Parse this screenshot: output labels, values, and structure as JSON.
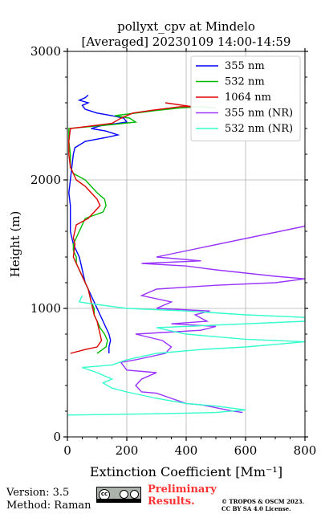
{
  "chart_data": {
    "type": "line",
    "title": "pollyxt_cpv at Mindelo",
    "subtitle": "[Averaged] 20230109 14:00-14:59",
    "xlabel": "Extinction Coefficient [Mm⁻¹]",
    "ylabel": "Height (m)",
    "xlim": [
      0,
      800
    ],
    "ylim": [
      0,
      3000
    ],
    "xticks": [
      "0",
      "200",
      "400",
      "600",
      "800"
    ],
    "yticks": [
      "0",
      "1000",
      "2000",
      "3000"
    ],
    "grid": true,
    "legend_position": "top-right",
    "series": [
      {
        "name": "355 nm",
        "color": "#0000ff",
        "points": [
          [
            140,
            650
          ],
          [
            140,
            700
          ],
          [
            145,
            750
          ],
          [
            140,
            800
          ],
          [
            130,
            850
          ],
          [
            120,
            900
          ],
          [
            110,
            950
          ],
          [
            100,
            1000
          ],
          [
            90,
            1050
          ],
          [
            80,
            1100
          ],
          [
            70,
            1150
          ],
          [
            60,
            1200
          ],
          [
            55,
            1250
          ],
          [
            50,
            1300
          ],
          [
            45,
            1350
          ],
          [
            40,
            1400
          ],
          [
            30,
            1450
          ],
          [
            20,
            1500
          ],
          [
            15,
            1550
          ],
          [
            10,
            1600
          ],
          [
            10,
            1700
          ],
          [
            10,
            1800
          ],
          [
            5,
            1900
          ],
          [
            10,
            2000
          ],
          [
            15,
            2100
          ],
          [
            20,
            2200
          ],
          [
            25,
            2250
          ],
          [
            60,
            2300
          ],
          [
            130,
            2330
          ],
          [
            170,
            2350
          ],
          [
            130,
            2380
          ],
          [
            80,
            2400
          ],
          [
            110,
            2420
          ],
          [
            200,
            2450
          ],
          [
            190,
            2480
          ],
          [
            150,
            2500
          ],
          [
            100,
            2520
          ],
          [
            60,
            2550
          ],
          [
            50,
            2580
          ],
          [
            70,
            2600
          ],
          [
            40,
            2620
          ],
          [
            60,
            2640
          ],
          [
            70,
            2660
          ]
        ]
      },
      {
        "name": "532 nm",
        "color": "#00bb00",
        "points": [
          [
            100,
            650
          ],
          [
            130,
            700
          ],
          [
            135,
            750
          ],
          [
            125,
            800
          ],
          [
            110,
            850
          ],
          [
            100,
            900
          ],
          [
            90,
            950
          ],
          [
            90,
            1000
          ],
          [
            80,
            1050
          ],
          [
            75,
            1100
          ],
          [
            70,
            1150
          ],
          [
            60,
            1200
          ],
          [
            50,
            1250
          ],
          [
            40,
            1300
          ],
          [
            30,
            1350
          ],
          [
            30,
            1400
          ],
          [
            20,
            1450
          ],
          [
            20,
            1500
          ],
          [
            40,
            1600
          ],
          [
            50,
            1650
          ],
          [
            60,
            1700
          ],
          [
            120,
            1750
          ],
          [
            130,
            1800
          ],
          [
            125,
            1850
          ],
          [
            100,
            1900
          ],
          [
            80,
            1950
          ],
          [
            60,
            2000
          ],
          [
            20,
            2050
          ],
          [
            10,
            2100
          ],
          [
            10,
            2200
          ],
          [
            5,
            2300
          ],
          [
            5,
            2400
          ],
          [
            150,
            2430
          ],
          [
            230,
            2450
          ],
          [
            210,
            2480
          ],
          [
            160,
            2500
          ],
          [
            230,
            2520
          ],
          [
            300,
            2540
          ],
          [
            380,
            2560
          ],
          [
            450,
            2570
          ],
          [
            500,
            2560
          ]
        ]
      },
      {
        "name": "1064 nm",
        "color": "#dd0000",
        "points": [
          [
            10,
            650
          ],
          [
            60,
            680
          ],
          [
            100,
            700
          ],
          [
            115,
            750
          ],
          [
            110,
            800
          ],
          [
            105,
            850
          ],
          [
            100,
            900
          ],
          [
            90,
            950
          ],
          [
            85,
            1000
          ],
          [
            80,
            1050
          ],
          [
            75,
            1100
          ],
          [
            70,
            1150
          ],
          [
            60,
            1200
          ],
          [
            50,
            1250
          ],
          [
            40,
            1300
          ],
          [
            30,
            1350
          ],
          [
            20,
            1400
          ],
          [
            25,
            1500
          ],
          [
            20,
            1550
          ],
          [
            30,
            1650
          ],
          [
            70,
            1700
          ],
          [
            90,
            1750
          ],
          [
            110,
            1800
          ],
          [
            100,
            1850
          ],
          [
            80,
            1900
          ],
          [
            60,
            1950
          ],
          [
            30,
            2000
          ],
          [
            10,
            2100
          ],
          [
            5,
            2200
          ],
          [
            5,
            2300
          ],
          [
            10,
            2400
          ],
          [
            80,
            2420
          ],
          [
            150,
            2440
          ],
          [
            180,
            2480
          ],
          [
            200,
            2500
          ],
          [
            220,
            2520
          ],
          [
            280,
            2540
          ],
          [
            380,
            2570
          ],
          [
            420,
            2570
          ],
          [
            330,
            2600
          ]
        ]
      },
      {
        "name": "355 nm (NR)",
        "color": "#9933ff",
        "points": [
          [
            590,
            190
          ],
          [
            560,
            200
          ],
          [
            450,
            250
          ],
          [
            400,
            260
          ],
          [
            350,
            300
          ],
          [
            300,
            340
          ],
          [
            250,
            350
          ],
          [
            230,
            400
          ],
          [
            250,
            450
          ],
          [
            280,
            480
          ],
          [
            300,
            500
          ],
          [
            200,
            520
          ],
          [
            180,
            580
          ],
          [
            230,
            600
          ],
          [
            330,
            650
          ],
          [
            350,
            700
          ],
          [
            320,
            750
          ],
          [
            230,
            800
          ],
          [
            450,
            830
          ],
          [
            500,
            860
          ],
          [
            350,
            880
          ],
          [
            470,
            900
          ],
          [
            430,
            950
          ],
          [
            480,
            980
          ],
          [
            300,
            1000
          ],
          [
            350,
            1050
          ],
          [
            250,
            1100
          ],
          [
            300,
            1150
          ],
          [
            500,
            1180
          ],
          [
            700,
            1200
          ],
          [
            800,
            1230
          ],
          [
            700,
            1250
          ],
          [
            500,
            1300
          ],
          [
            400,
            1330
          ],
          [
            250,
            1350
          ],
          [
            450,
            1370
          ],
          [
            300,
            1400
          ],
          [
            800,
            1640
          ],
          [
            800,
            1660
          ]
        ]
      },
      {
        "name": "532 nm (NR)",
        "color": "#33ffcc",
        "points": [
          [
            0,
            170
          ],
          [
            300,
            180
          ],
          [
            500,
            190
          ],
          [
            600,
            210
          ],
          [
            500,
            240
          ],
          [
            400,
            260
          ],
          [
            300,
            300
          ],
          [
            200,
            350
          ],
          [
            150,
            380
          ],
          [
            120,
            420
          ],
          [
            150,
            450
          ],
          [
            100,
            500
          ],
          [
            50,
            540
          ],
          [
            150,
            560
          ],
          [
            200,
            600
          ],
          [
            300,
            650
          ],
          [
            450,
            680
          ],
          [
            600,
            700
          ],
          [
            700,
            720
          ],
          [
            800,
            740
          ],
          [
            600,
            760
          ],
          [
            400,
            800
          ],
          [
            300,
            850
          ],
          [
            800,
            900
          ],
          [
            800,
            930
          ],
          [
            600,
            950
          ],
          [
            400,
            980
          ],
          [
            200,
            1000
          ],
          [
            100,
            1030
          ],
          [
            40,
            1050
          ],
          [
            50,
            1100
          ]
        ]
      }
    ]
  },
  "footer": {
    "version": "Version: 3.5",
    "method": "Method: Raman",
    "preliminary_line1": "Preliminary",
    "preliminary_line2": "Results.",
    "copyright_line1": "© TROPOS & OSCM 2023.",
    "copyright_line2": "CC BY SA 4.0 License.",
    "cc_badge": "cc-by-sa-badge"
  }
}
